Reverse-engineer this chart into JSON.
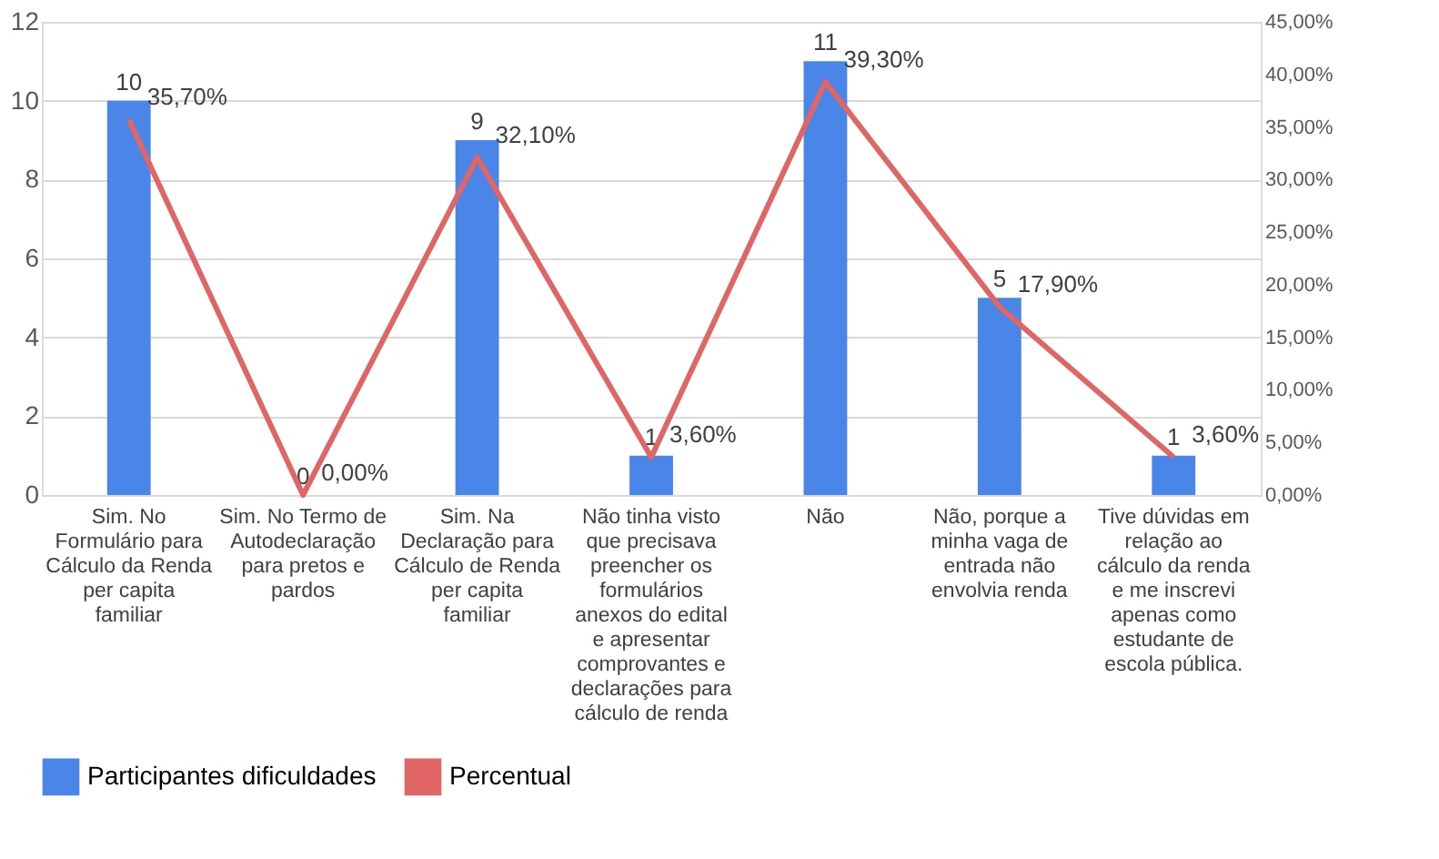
{
  "chart_data": {
    "type": "bar",
    "categories": [
      "Sim. No Formulário para Cálculo da Renda per capita familiar",
      "Sim. No Termo de Autodeclaração para pretos e pardos",
      "Sim. Na Declaração para Cálculo de Renda per capita familiar",
      "Não tinha visto que precisava preencher os formulários anexos do edital e apresentar comprovantes e declarações para cálculo de renda",
      "Não",
      "Não, porque a minha vaga de entrada não envolvia renda",
      "Tive dúvidas em relação ao cálculo da renda e me inscrevi apenas como estudante de escola pública."
    ],
    "series": [
      {
        "name": "Participantes dificuldades",
        "color": "#4a86e8",
        "values": [
          10,
          0,
          9,
          1,
          11,
          5,
          1
        ],
        "value_labels": [
          "10",
          "0",
          "9",
          "1",
          "11",
          "5",
          "1"
        ]
      },
      {
        "name": "Percentual",
        "type": "line",
        "axis": "y2",
        "color": "#e06666",
        "values": [
          35.7,
          0,
          32.1,
          3.6,
          39.3,
          17.9,
          3.6
        ],
        "value_labels": [
          "35,70%",
          "0,00%",
          "32,10%",
          "3,60%",
          "39,30%",
          "17,90%",
          "3,60%"
        ]
      }
    ],
    "ylim": [
      0,
      12
    ],
    "yticks": [
      0,
      2,
      4,
      6,
      8,
      10,
      12
    ],
    "y2lim": [
      0,
      45
    ],
    "y2ticks": [
      {
        "value": 0,
        "label": "0,00%"
      },
      {
        "value": 5,
        "label": "5,00%"
      },
      {
        "value": 10,
        "label": "10,00%"
      },
      {
        "value": 15,
        "label": "15,00%"
      },
      {
        "value": 20,
        "label": "20,00%"
      },
      {
        "value": 25,
        "label": "25,00%"
      },
      {
        "value": 30,
        "label": "30,00%"
      },
      {
        "value": 35,
        "label": "35,00%"
      },
      {
        "value": 40,
        "label": "40,00%"
      },
      {
        "value": 45,
        "label": "45,00%"
      }
    ],
    "grid": "y",
    "legend": "bottom",
    "line_style": "solid"
  }
}
